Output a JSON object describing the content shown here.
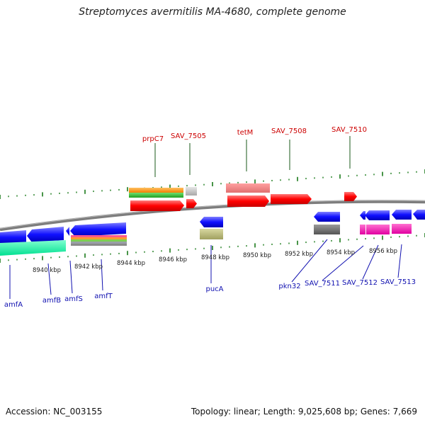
{
  "title": "Streptomyces avermitilis MA-4680, complete genome",
  "accession": "Accession: NC_003155",
  "topology": "Topology: linear; Length: 9,025,608 bp; Genes: 7,669",
  "colors": {
    "forward_gene": "#ff1a1a",
    "reverse_gene": "#1a1aff",
    "top_label": "#cc0000",
    "bottom_label": "#1010b0",
    "tick": "#1a7a1a",
    "backbone": "#808080"
  },
  "scale_labels": [
    "8940 kbp",
    "8942 kbp",
    "8944 kbp",
    "8946 kbp",
    "8948 kbp",
    "8950 kbp",
    "8952 kbp",
    "8954 kbp",
    "8956 kbp"
  ],
  "top_gene_labels": [
    "prpC7",
    "SAV_7505",
    "tetM",
    "SAV_7508",
    "SAV_7510"
  ],
  "bottom_gene_labels": [
    "amfA",
    "amfB",
    "amfS",
    "amfT",
    "pucA",
    "pkn32",
    "SAV_7511",
    "SAV_7512",
    "SAV_7513"
  ]
}
